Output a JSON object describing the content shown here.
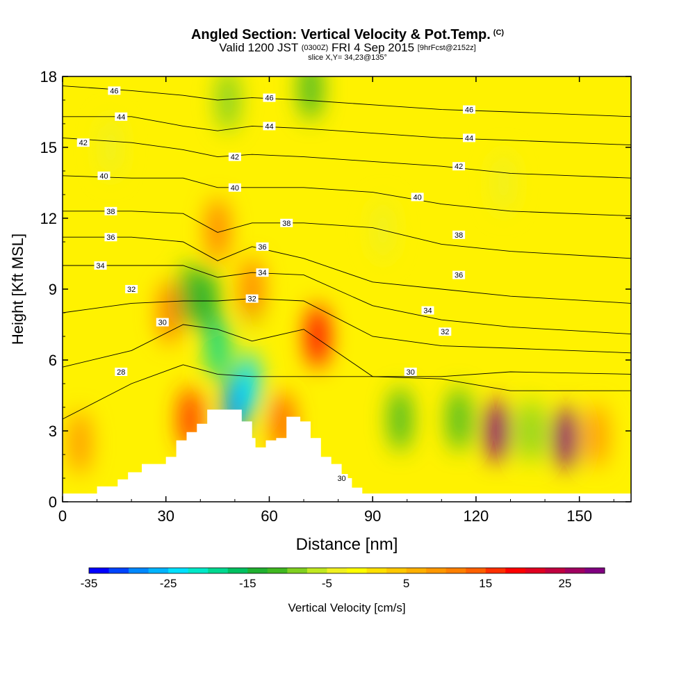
{
  "header": {
    "title": "Angled Section: Vertical Velocity & Pot.Temp.",
    "title_units": "(C)",
    "valid_main": "Valid 1200 JST",
    "valid_utc": "(0300Z)",
    "valid_date": "FRI 4 Sep 2015",
    "forecast": "[9hrFcst@2152z]",
    "slice": "slice X,Y= 34,23@135°"
  },
  "colorbar": {
    "label": "Vertical Velocity [cm/s]",
    "ticks": [
      "-35",
      "-25",
      "-15",
      "-5",
      "5",
      "15",
      "25"
    ],
    "tick_values": [
      -35,
      -25,
      -15,
      -5,
      5,
      15,
      25
    ],
    "min": -35,
    "max": 30,
    "colors": [
      "#0000ff",
      "#0044ff",
      "#0088ff",
      "#00b4ff",
      "#00e0ff",
      "#00e8c8",
      "#00d890",
      "#00c060",
      "#20b030",
      "#40b820",
      "#80d020",
      "#c0e820",
      "#f0f020",
      "#ffff00",
      "#ffe000",
      "#ffc800",
      "#ffb000",
      "#ff9800",
      "#ff8000",
      "#ff6000",
      "#ff3000",
      "#ff0000",
      "#e00020",
      "#c00040",
      "#a00060",
      "#800080"
    ]
  },
  "chart_data": {
    "type": "heatmap",
    "xlabel": "Distance [nm]",
    "ylabel": "Height [Kft MSL]",
    "xlim": [
      0,
      165
    ],
    "ylim": [
      0,
      18
    ],
    "xticks": [
      "0",
      "30",
      "60",
      "90",
      "120",
      "150"
    ],
    "xtick_values": [
      0,
      30,
      60,
      90,
      120,
      150
    ],
    "yticks": [
      "0",
      "3",
      "6",
      "9",
      "12",
      "15",
      "18"
    ],
    "ytick_values": [
      0,
      3,
      6,
      9,
      12,
      15,
      18
    ],
    "terrain_profile": [
      [
        0,
        0.35
      ],
      [
        10,
        0.35
      ],
      [
        10,
        0.65
      ],
      [
        16,
        0.65
      ],
      [
        16,
        0.95
      ],
      [
        19,
        0.95
      ],
      [
        19,
        1.25
      ],
      [
        23,
        1.25
      ],
      [
        23,
        1.6
      ],
      [
        30,
        1.6
      ],
      [
        30,
        1.9
      ],
      [
        33,
        1.9
      ],
      [
        33,
        2.6
      ],
      [
        36,
        2.6
      ],
      [
        36,
        2.95
      ],
      [
        39,
        2.95
      ],
      [
        39,
        3.3
      ],
      [
        42,
        3.3
      ],
      [
        42,
        3.9
      ],
      [
        52,
        3.9
      ],
      [
        52,
        3.4
      ],
      [
        55,
        3.4
      ],
      [
        55,
        2.7
      ],
      [
        56,
        2.7
      ],
      [
        56,
        2.3
      ],
      [
        59,
        2.3
      ],
      [
        59,
        2.6
      ],
      [
        62,
        2.6
      ],
      [
        62,
        2.7
      ],
      [
        65,
        2.7
      ],
      [
        65,
        3.6
      ],
      [
        69,
        3.6
      ],
      [
        69,
        3.4
      ],
      [
        72,
        3.4
      ],
      [
        72,
        2.7
      ],
      [
        75,
        2.7
      ],
      [
        75,
        1.9
      ],
      [
        78,
        1.9
      ],
      [
        78,
        1.6
      ],
      [
        81,
        1.6
      ],
      [
        81,
        1.0
      ],
      [
        84,
        1.0
      ],
      [
        84,
        0.6
      ],
      [
        87,
        0.6
      ],
      [
        87,
        0.35
      ],
      [
        165,
        0.35
      ]
    ],
    "vertical_velocity_cells": [
      {
        "x": 50,
        "y": 4.0,
        "value": -30
      },
      {
        "x": 54,
        "y": 5.0,
        "value": -25
      },
      {
        "x": 45,
        "y": 6.5,
        "value": -20
      },
      {
        "x": 42,
        "y": 8.5,
        "value": -15
      },
      {
        "x": 37,
        "y": 8.8,
        "value": -12
      },
      {
        "x": 55,
        "y": 8.8,
        "value": -10
      },
      {
        "x": 72,
        "y": 17.5,
        "value": -12
      },
      {
        "x": 48,
        "y": 17.0,
        "value": -8
      },
      {
        "x": 98,
        "y": 3.5,
        "value": -12
      },
      {
        "x": 115,
        "y": 3.5,
        "value": -12
      },
      {
        "x": 136,
        "y": 3.0,
        "value": -10
      },
      {
        "x": 128,
        "y": 13.5,
        "value": -5
      },
      {
        "x": 93,
        "y": 11.5,
        "value": -5
      },
      {
        "x": 14,
        "y": 15.0,
        "value": -5
      },
      {
        "x": 74,
        "y": 7.0,
        "value": 18
      },
      {
        "x": 55,
        "y": 9.0,
        "value": 12
      },
      {
        "x": 45,
        "y": 11.5,
        "value": 12
      },
      {
        "x": 37,
        "y": 3.5,
        "value": 15
      },
      {
        "x": 64,
        "y": 3.3,
        "value": 14
      },
      {
        "x": 126,
        "y": 3.0,
        "value": 28
      },
      {
        "x": 146,
        "y": 2.7,
        "value": 30
      },
      {
        "x": 31,
        "y": 8.0,
        "value": 10
      },
      {
        "x": 5,
        "y": 2.5,
        "value": 8
      },
      {
        "x": 155,
        "y": 2.8,
        "value": 8
      }
    ],
    "isentropes": [
      {
        "value": 28,
        "label": "28",
        "levels": [
          3.5,
          5.0,
          5.8,
          5.4,
          5.3,
          5.3,
          5.3,
          5.2,
          4.7,
          4.7
        ]
      },
      {
        "value": 30,
        "label": "30",
        "levels": [
          5.7,
          6.4,
          7.5,
          7.3,
          6.8,
          7.3,
          5.3,
          5.3,
          5.5,
          5.4
        ]
      },
      {
        "value": 32,
        "label": "32",
        "levels": [
          8.0,
          8.4,
          8.5,
          8.5,
          8.6,
          8.5,
          7.0,
          6.6,
          6.5,
          6.3
        ]
      },
      {
        "value": 34,
        "label": "34",
        "levels": [
          10.0,
          10.0,
          10.0,
          9.5,
          9.7,
          9.6,
          8.3,
          7.7,
          7.4,
          7.1
        ]
      },
      {
        "value": 36,
        "label": "36",
        "levels": [
          11.2,
          11.2,
          11.0,
          10.2,
          10.8,
          10.3,
          9.3,
          9.0,
          8.7,
          8.4
        ]
      },
      {
        "value": 38,
        "label": "38",
        "levels": [
          12.3,
          12.3,
          12.2,
          11.4,
          11.8,
          11.8,
          11.6,
          10.9,
          10.6,
          10.3
        ]
      },
      {
        "value": 40,
        "label": "40",
        "levels": [
          13.8,
          13.7,
          13.7,
          13.3,
          13.3,
          13.3,
          13.1,
          12.6,
          12.3,
          12.1
        ]
      },
      {
        "value": 42,
        "label": "42",
        "levels": [
          15.4,
          15.2,
          14.9,
          14.6,
          14.7,
          14.6,
          14.4,
          14.2,
          13.9,
          13.7
        ]
      },
      {
        "value": 44,
        "label": "44",
        "levels": [
          16.3,
          16.3,
          15.9,
          15.7,
          15.9,
          15.8,
          15.6,
          15.4,
          15.3,
          15.1
        ]
      },
      {
        "value": 46,
        "label": "46",
        "levels": [
          17.6,
          17.4,
          17.2,
          17.0,
          17.1,
          17.0,
          16.8,
          16.6,
          16.5,
          16.3
        ]
      }
    ],
    "isentrope_x": [
      0,
      20,
      35,
      45,
      55,
      70,
      90,
      110,
      130,
      165
    ],
    "contour_labels": [
      {
        "text": "46",
        "x": 15,
        "y": 17.4
      },
      {
        "text": "46",
        "x": 60,
        "y": 17.1
      },
      {
        "text": "46",
        "x": 118,
        "y": 16.6
      },
      {
        "text": "44",
        "x": 17,
        "y": 16.3
      },
      {
        "text": "44",
        "x": 60,
        "y": 15.9
      },
      {
        "text": "44",
        "x": 118,
        "y": 15.4
      },
      {
        "text": "42",
        "x": 6,
        "y": 15.2
      },
      {
        "text": "42",
        "x": 50,
        "y": 14.6
      },
      {
        "text": "42",
        "x": 115,
        "y": 14.2
      },
      {
        "text": "40",
        "x": 12,
        "y": 13.8
      },
      {
        "text": "40",
        "x": 50,
        "y": 13.3
      },
      {
        "text": "40",
        "x": 103,
        "y": 12.9
      },
      {
        "text": "38",
        "x": 14,
        "y": 12.3
      },
      {
        "text": "38",
        "x": 65,
        "y": 11.8
      },
      {
        "text": "38",
        "x": 115,
        "y": 11.3
      },
      {
        "text": "36",
        "x": 14,
        "y": 11.2
      },
      {
        "text": "36",
        "x": 58,
        "y": 10.8
      },
      {
        "text": "36",
        "x": 115,
        "y": 9.6
      },
      {
        "text": "34",
        "x": 11,
        "y": 10.0
      },
      {
        "text": "34",
        "x": 58,
        "y": 9.7
      },
      {
        "text": "34",
        "x": 106,
        "y": 8.1
      },
      {
        "text": "32",
        "x": 20,
        "y": 9.0
      },
      {
        "text": "32",
        "x": 55,
        "y": 8.6
      },
      {
        "text": "32",
        "x": 111,
        "y": 7.2
      },
      {
        "text": "30",
        "x": 29,
        "y": 7.6
      },
      {
        "text": "30",
        "x": 101,
        "y": 5.5
      },
      {
        "text": "30",
        "x": 81,
        "y": 1.0
      },
      {
        "text": "28",
        "x": 17,
        "y": 5.5
      }
    ]
  }
}
